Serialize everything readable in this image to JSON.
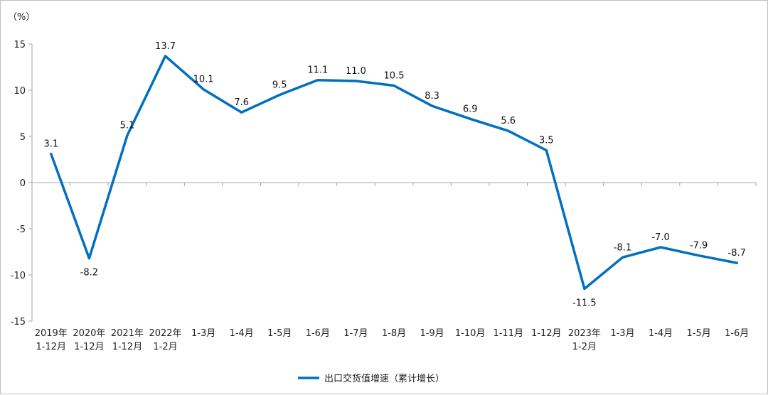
{
  "chart_data": {
    "type": "line",
    "y_unit_label": "（%）",
    "ylim": [
      -15,
      15
    ],
    "y_ticks": [
      "15",
      "10",
      "5",
      "0",
      "-5",
      "-10",
      "-15"
    ],
    "categories": [
      [
        "2019年",
        "1-12月"
      ],
      [
        "2020年",
        "1-12月"
      ],
      [
        "2021年",
        "1-12月"
      ],
      [
        "2022年",
        "1-2月"
      ],
      [
        "1-3月"
      ],
      [
        "1-4月"
      ],
      [
        "1-5月"
      ],
      [
        "1-6月"
      ],
      [
        "1-7月"
      ],
      [
        "1-8月"
      ],
      [
        "1-9月"
      ],
      [
        "1-10月"
      ],
      [
        "1-11月"
      ],
      [
        "1-12月"
      ],
      [
        "2023年",
        "1-2月"
      ],
      [
        "1-3月"
      ],
      [
        "1-4月"
      ],
      [
        "1-5月"
      ],
      [
        "1-6月"
      ]
    ],
    "series": [
      {
        "name": "出口交货值增速（累计增长）",
        "color": "#0070C0",
        "values": [
          3.1,
          -8.2,
          5.1,
          13.7,
          10.1,
          7.6,
          9.5,
          11.1,
          11.0,
          10.5,
          8.3,
          6.9,
          5.6,
          3.5,
          -11.5,
          -8.1,
          -7.0,
          -7.9,
          -8.7
        ],
        "labels": [
          "3.1",
          "-8.2",
          "5.1",
          "13.7",
          "10.1",
          "7.6",
          "9.5",
          "11.1",
          "11.0",
          "10.5",
          "8.3",
          "6.9",
          "5.6",
          "3.5",
          "-11.5",
          "-8.1",
          "-7.0",
          "-7.9",
          "-8.7"
        ]
      }
    ],
    "legend_position": "bottom-center",
    "grid": false
  }
}
